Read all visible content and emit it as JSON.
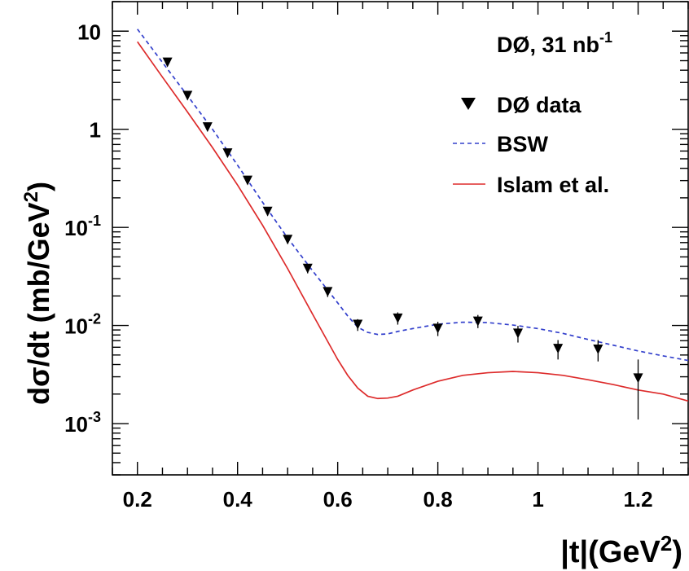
{
  "chart_data": {
    "type": "scatter",
    "annotation": {
      "main": "DØ, 31 nb",
      "exp": "-1"
    },
    "xlabel": {
      "main": "|t|(GeV",
      "sup": "2",
      "close": ")"
    },
    "ylabel": {
      "main": "dσ/dt (mb/GeV",
      "sup": "2",
      "close": ")"
    },
    "xlim": [
      0.15,
      1.3
    ],
    "ylim": [
      0.0003,
      20
    ],
    "yscale": "log",
    "grid": false,
    "legend_position": "top-right",
    "x_ticks": [
      {
        "value": 0.2,
        "label": "0.2"
      },
      {
        "value": 0.4,
        "label": "0.4"
      },
      {
        "value": 0.6,
        "label": "0.6"
      },
      {
        "value": 0.8,
        "label": "0.8"
      },
      {
        "value": 1.0,
        "label": "1"
      },
      {
        "value": 1.2,
        "label": "1.2"
      }
    ],
    "y_ticks": [
      {
        "value": 10,
        "base": "10",
        "exp": ""
      },
      {
        "value": 1,
        "base": "1",
        "exp": ""
      },
      {
        "value": 0.1,
        "base": "10",
        "exp": "-1"
      },
      {
        "value": 0.01,
        "base": "10",
        "exp": "-2"
      },
      {
        "value": 0.001,
        "base": "10",
        "exp": "-3"
      }
    ],
    "series": [
      {
        "name": "DØ data",
        "kind": "points",
        "color": "#000000",
        "marker": "triangle-down",
        "points": [
          {
            "x": 0.26,
            "y": 4.8,
            "lo": 4.4,
            "hi": 5.2
          },
          {
            "x": 0.3,
            "y": 2.2,
            "lo": 2.0,
            "hi": 2.4
          },
          {
            "x": 0.34,
            "y": 1.05,
            "lo": 0.96,
            "hi": 1.15
          },
          {
            "x": 0.38,
            "y": 0.57,
            "lo": 0.52,
            "hi": 0.62
          },
          {
            "x": 0.42,
            "y": 0.3,
            "lo": 0.275,
            "hi": 0.33
          },
          {
            "x": 0.46,
            "y": 0.145,
            "lo": 0.132,
            "hi": 0.158
          },
          {
            "x": 0.5,
            "y": 0.075,
            "lo": 0.068,
            "hi": 0.082
          },
          {
            "x": 0.54,
            "y": 0.038,
            "lo": 0.034,
            "hi": 0.042
          },
          {
            "x": 0.58,
            "y": 0.022,
            "lo": 0.0195,
            "hi": 0.0245
          },
          {
            "x": 0.64,
            "y": 0.0102,
            "lo": 0.0088,
            "hi": 0.0116
          },
          {
            "x": 0.72,
            "y": 0.0118,
            "lo": 0.0102,
            "hi": 0.0136
          },
          {
            "x": 0.8,
            "y": 0.0093,
            "lo": 0.0078,
            "hi": 0.0109
          },
          {
            "x": 0.88,
            "y": 0.011,
            "lo": 0.0094,
            "hi": 0.0128
          },
          {
            "x": 0.96,
            "y": 0.0083,
            "lo": 0.0067,
            "hi": 0.0099
          },
          {
            "x": 1.04,
            "y": 0.0058,
            "lo": 0.0045,
            "hi": 0.0071
          },
          {
            "x": 1.12,
            "y": 0.0057,
            "lo": 0.0043,
            "hi": 0.0071
          },
          {
            "x": 1.2,
            "y": 0.0029,
            "lo": 0.0011,
            "hi": 0.0045
          }
        ]
      },
      {
        "name": "BSW",
        "kind": "line",
        "color": "#3340cc",
        "dash": "5,4",
        "x": [
          0.2,
          0.25,
          0.3,
          0.35,
          0.4,
          0.45,
          0.5,
          0.55,
          0.6,
          0.62,
          0.64,
          0.66,
          0.68,
          0.7,
          0.72,
          0.75,
          0.8,
          0.85,
          0.9,
          0.95,
          1.0,
          1.05,
          1.1,
          1.15,
          1.2,
          1.25,
          1.3
        ],
        "y": [
          10.5,
          4.8,
          2.2,
          1.0,
          0.43,
          0.18,
          0.078,
          0.036,
          0.017,
          0.0125,
          0.0096,
          0.0085,
          0.0081,
          0.0082,
          0.0087,
          0.0093,
          0.0103,
          0.0108,
          0.0107,
          0.0101,
          0.0093,
          0.0083,
          0.0072,
          0.0063,
          0.0055,
          0.0049,
          0.0044
        ]
      },
      {
        "name": "Islam et al.",
        "kind": "line",
        "color": "#dd2b2b",
        "dash": "",
        "x": [
          0.2,
          0.25,
          0.3,
          0.35,
          0.4,
          0.45,
          0.5,
          0.55,
          0.6,
          0.62,
          0.64,
          0.66,
          0.68,
          0.7,
          0.72,
          0.75,
          0.8,
          0.85,
          0.9,
          0.95,
          1.0,
          1.05,
          1.1,
          1.15,
          1.2,
          1.25,
          1.3
        ],
        "y": [
          7.8,
          3.4,
          1.5,
          0.65,
          0.27,
          0.105,
          0.038,
          0.013,
          0.0045,
          0.0031,
          0.0023,
          0.0019,
          0.0018,
          0.00182,
          0.0019,
          0.0022,
          0.0027,
          0.0031,
          0.0033,
          0.0034,
          0.0033,
          0.0031,
          0.0028,
          0.0025,
          0.0022,
          0.002,
          0.0017
        ]
      }
    ]
  }
}
